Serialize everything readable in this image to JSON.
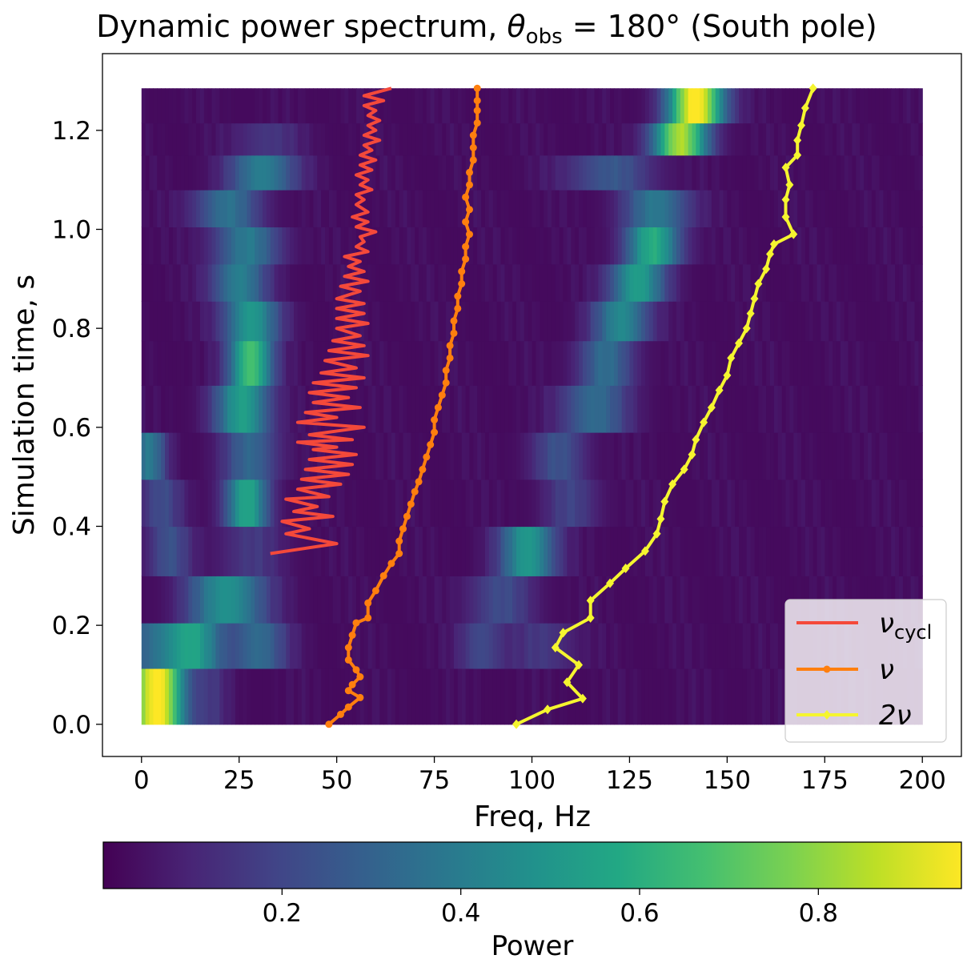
{
  "chart_data": {
    "type": "heatmap",
    "title": {
      "prefix": "Dynamic power spectrum, ",
      "symbol": "θ",
      "subscript": "obs",
      "suffix": " = 180° (South pole)"
    },
    "xlabel": "Freq, Hz",
    "ylabel": "Simulation time, s",
    "xlim": [
      -10,
      210
    ],
    "ylim": [
      -0.065,
      1.355
    ],
    "xticks": [
      0,
      25,
      50,
      75,
      100,
      125,
      150,
      175,
      200
    ],
    "yticks": [
      0.0,
      0.2,
      0.4,
      0.6,
      0.8,
      1.0,
      1.2
    ],
    "ytick_labels": [
      "0.0",
      "0.2",
      "0.4",
      "0.6",
      "0.8",
      "1.0",
      "1.2"
    ],
    "heatmap": {
      "freq_range": [
        0,
        200
      ],
      "colormap": "viridis",
      "rows": [
        {
          "t0": 0.0,
          "t1": 0.113,
          "peaks": [
            [
              4,
              5,
              0.95
            ],
            [
              18,
              3,
              0.1
            ]
          ]
        },
        {
          "t0": 0.113,
          "t1": 0.205,
          "peaks": [
            [
              5,
              8,
              0.3
            ],
            [
              14,
              5,
              0.35
            ],
            [
              30,
              5,
              0.3
            ],
            [
              87,
              4,
              0.18
            ],
            [
              103,
              6,
              0.12
            ]
          ]
        },
        {
          "t0": 0.205,
          "t1": 0.3,
          "peaks": [
            [
              22,
              7,
              0.45
            ],
            [
              92,
              6,
              0.18
            ]
          ]
        },
        {
          "t0": 0.3,
          "t1": 0.4,
          "peaks": [
            [
              7,
              4,
              0.2
            ],
            [
              28,
              6,
              0.12
            ],
            [
              99,
              5,
              0.48
            ]
          ]
        },
        {
          "t0": 0.4,
          "t1": 0.495,
          "peaks": [
            [
              5,
              4,
              0.18
            ],
            [
              27,
              4,
              0.52
            ],
            [
              110,
              5,
              0.15
            ]
          ]
        },
        {
          "t0": 0.495,
          "t1": 0.59,
          "peaks": [
            [
              2,
              3,
              0.35
            ],
            [
              28,
              5,
              0.28
            ],
            [
              107,
              5,
              0.2
            ]
          ]
        },
        {
          "t0": 0.59,
          "t1": 0.685,
          "peaks": [
            [
              26,
              5,
              0.5
            ],
            [
              116,
              6,
              0.3
            ]
          ]
        },
        {
          "t0": 0.685,
          "t1": 0.775,
          "peaks": [
            [
              28,
              4,
              0.65
            ],
            [
              119,
              5,
              0.3
            ]
          ]
        },
        {
          "t0": 0.775,
          "t1": 0.855,
          "peaks": [
            [
              28,
              5,
              0.48
            ],
            [
              123,
              5,
              0.42
            ]
          ]
        },
        {
          "t0": 0.855,
          "t1": 0.93,
          "peaks": [
            [
              25,
              5,
              0.38
            ],
            [
              127,
              5,
              0.5
            ]
          ]
        },
        {
          "t0": 0.93,
          "t1": 1.005,
          "peaks": [
            [
              27,
              6,
              0.35
            ],
            [
              131,
              5,
              0.55
            ]
          ]
        },
        {
          "t0": 1.005,
          "t1": 1.08,
          "peaks": [
            [
              22,
              6,
              0.32
            ],
            [
              132,
              6,
              0.35
            ]
          ]
        },
        {
          "t0": 1.08,
          "t1": 1.15,
          "peaks": [
            [
              31,
              6,
              0.38
            ],
            [
              120,
              8,
              0.22
            ]
          ]
        },
        {
          "t0": 1.15,
          "t1": 1.215,
          "peaks": [
            [
              32,
              6,
              0.12
            ],
            [
              138,
              5,
              0.8
            ]
          ]
        },
        {
          "t0": 1.215,
          "t1": 1.285,
          "peaks": [
            [
              142,
              5,
              0.95
            ]
          ]
        }
      ]
    },
    "colorbar": {
      "label": "Power",
      "range": [
        0.0,
        0.96
      ],
      "ticks": [
        0.2,
        0.4,
        0.6,
        0.8
      ],
      "tick_labels": [
        "0.2",
        "0.4",
        "0.6",
        "0.8"
      ]
    },
    "series": [
      {
        "name": "ν",
        "subscript": "cycl",
        "color": "#f4493a",
        "marker": "none",
        "points": [
          [
            33,
            0.345
          ],
          [
            50,
            0.365
          ],
          [
            37,
            0.385
          ],
          [
            43,
            0.395
          ],
          [
            36,
            0.41
          ],
          [
            49,
            0.42
          ],
          [
            39,
            0.43
          ],
          [
            45,
            0.44
          ],
          [
            37,
            0.455
          ],
          [
            48,
            0.46
          ],
          [
            40,
            0.475
          ],
          [
            51,
            0.485
          ],
          [
            41,
            0.495
          ],
          [
            53,
            0.505
          ],
          [
            42,
            0.515
          ],
          [
            54,
            0.525
          ],
          [
            43,
            0.535
          ],
          [
            55,
            0.545
          ],
          [
            44,
            0.555
          ],
          [
            50,
            0.56
          ],
          [
            40,
            0.57
          ],
          [
            54,
            0.575
          ],
          [
            43,
            0.585
          ],
          [
            57,
            0.6
          ],
          [
            40,
            0.61
          ],
          [
            50,
            0.62
          ],
          [
            42,
            0.63
          ],
          [
            56,
            0.64
          ],
          [
            44,
            0.65
          ],
          [
            53,
            0.66
          ],
          [
            43,
            0.67
          ],
          [
            55,
            0.68
          ],
          [
            44,
            0.69
          ],
          [
            57,
            0.7
          ],
          [
            46,
            0.71
          ],
          [
            55,
            0.72
          ],
          [
            47,
            0.735
          ],
          [
            58,
            0.745
          ],
          [
            48,
            0.755
          ],
          [
            57,
            0.765
          ],
          [
            49,
            0.775
          ],
          [
            56,
            0.785
          ],
          [
            50,
            0.8
          ],
          [
            58,
            0.81
          ],
          [
            50,
            0.82
          ],
          [
            57,
            0.83
          ],
          [
            50,
            0.84
          ],
          [
            57,
            0.85
          ],
          [
            50,
            0.86
          ],
          [
            56,
            0.875
          ],
          [
            51,
            0.885
          ],
          [
            58,
            0.895
          ],
          [
            52,
            0.905
          ],
          [
            57,
            0.915
          ],
          [
            53,
            0.925
          ],
          [
            56,
            0.935
          ],
          [
            52,
            0.945
          ],
          [
            58,
            0.955
          ],
          [
            55,
            0.965
          ],
          [
            57,
            0.975
          ],
          [
            56,
            0.985
          ],
          [
            60,
            0.995
          ],
          [
            55,
            1.005
          ],
          [
            58,
            1.015
          ],
          [
            54,
            1.025
          ],
          [
            58,
            1.035
          ],
          [
            55,
            1.05
          ],
          [
            57,
            1.06
          ],
          [
            55,
            1.07
          ],
          [
            59,
            1.08
          ],
          [
            56,
            1.09
          ],
          [
            58,
            1.1
          ],
          [
            55,
            1.11
          ],
          [
            59,
            1.12
          ],
          [
            56,
            1.13
          ],
          [
            60,
            1.14
          ],
          [
            56,
            1.15
          ],
          [
            59,
            1.16
          ],
          [
            57,
            1.17
          ],
          [
            61,
            1.18
          ],
          [
            57,
            1.19
          ],
          [
            60,
            1.2
          ],
          [
            58,
            1.21
          ],
          [
            61,
            1.22
          ],
          [
            58,
            1.23
          ],
          [
            60,
            1.24
          ],
          [
            57,
            1.25
          ],
          [
            62,
            1.26
          ],
          [
            57,
            1.27
          ],
          [
            64,
            1.285
          ]
        ]
      },
      {
        "name": "ν",
        "subscript": "",
        "color": "#ff7f0e",
        "marker": "circle",
        "points": [
          [
            48,
            0.0
          ],
          [
            51,
            0.02
          ],
          [
            53,
            0.035
          ],
          [
            56,
            0.054
          ],
          [
            53,
            0.068
          ],
          [
            54,
            0.08
          ],
          [
            56,
            0.096
          ],
          [
            55,
            0.11
          ],
          [
            53,
            0.13
          ],
          [
            53,
            0.155
          ],
          [
            54,
            0.18
          ],
          [
            55,
            0.205
          ],
          [
            58,
            0.215
          ],
          [
            58,
            0.245
          ],
          [
            60,
            0.27
          ],
          [
            62,
            0.3
          ],
          [
            64,
            0.325
          ],
          [
            66,
            0.345
          ],
          [
            66,
            0.37
          ],
          [
            67,
            0.395
          ],
          [
            68,
            0.42
          ],
          [
            69,
            0.445
          ],
          [
            70,
            0.47
          ],
          [
            71,
            0.49
          ],
          [
            72,
            0.515
          ],
          [
            73,
            0.54
          ],
          [
            74,
            0.565
          ],
          [
            75,
            0.59
          ],
          [
            75,
            0.615
          ],
          [
            76,
            0.64
          ],
          [
            77,
            0.665
          ],
          [
            78,
            0.69
          ],
          [
            78,
            0.715
          ],
          [
            79,
            0.74
          ],
          [
            79,
            0.765
          ],
          [
            80,
            0.79
          ],
          [
            80,
            0.815
          ],
          [
            81,
            0.84
          ],
          [
            81,
            0.865
          ],
          [
            82,
            0.89
          ],
          [
            82,
            0.915
          ],
          [
            83,
            0.94
          ],
          [
            83,
            0.965
          ],
          [
            84,
            0.99
          ],
          [
            83,
            1.015
          ],
          [
            84,
            1.04
          ],
          [
            83,
            1.065
          ],
          [
            84,
            1.09
          ],
          [
            84,
            1.115
          ],
          [
            85,
            1.14
          ],
          [
            85,
            1.165
          ],
          [
            85,
            1.19
          ],
          [
            86,
            1.215
          ],
          [
            86,
            1.24
          ],
          [
            86,
            1.26
          ],
          [
            86,
            1.285
          ]
        ]
      },
      {
        "name": "2ν",
        "subscript": "",
        "color": "#f5f52f",
        "marker": "diamond",
        "points": [
          [
            96,
            0.0
          ],
          [
            104,
            0.03
          ],
          [
            113,
            0.052
          ],
          [
            109,
            0.085
          ],
          [
            112,
            0.12
          ],
          [
            106,
            0.155
          ],
          [
            108,
            0.185
          ],
          [
            115,
            0.215
          ],
          [
            115,
            0.25
          ],
          [
            120,
            0.285
          ],
          [
            124,
            0.315
          ],
          [
            129,
            0.35
          ],
          [
            132,
            0.385
          ],
          [
            133,
            0.415
          ],
          [
            134,
            0.45
          ],
          [
            136,
            0.485
          ],
          [
            139,
            0.515
          ],
          [
            141,
            0.545
          ],
          [
            142,
            0.575
          ],
          [
            144,
            0.61
          ],
          [
            146,
            0.64
          ],
          [
            148,
            0.675
          ],
          [
            150,
            0.705
          ],
          [
            151,
            0.74
          ],
          [
            153,
            0.77
          ],
          [
            155,
            0.8
          ],
          [
            156,
            0.83
          ],
          [
            157,
            0.86
          ],
          [
            158,
            0.89
          ],
          [
            160,
            0.92
          ],
          [
            161,
            0.95
          ],
          [
            162,
            0.97
          ],
          [
            167,
            0.99
          ],
          [
            165,
            1.025
          ],
          [
            165,
            1.06
          ],
          [
            166,
            1.09
          ],
          [
            165,
            1.125
          ],
          [
            168,
            1.15
          ],
          [
            168,
            1.18
          ],
          [
            169,
            1.21
          ],
          [
            170,
            1.245
          ],
          [
            172,
            1.285
          ]
        ]
      }
    ],
    "legend": {
      "placement": "lower right",
      "entries": [
        {
          "symbol": "ν",
          "subscript": "cycl"
        },
        {
          "symbol": "ν",
          "subscript": ""
        },
        {
          "symbol": "2ν",
          "subscript": ""
        }
      ]
    }
  }
}
